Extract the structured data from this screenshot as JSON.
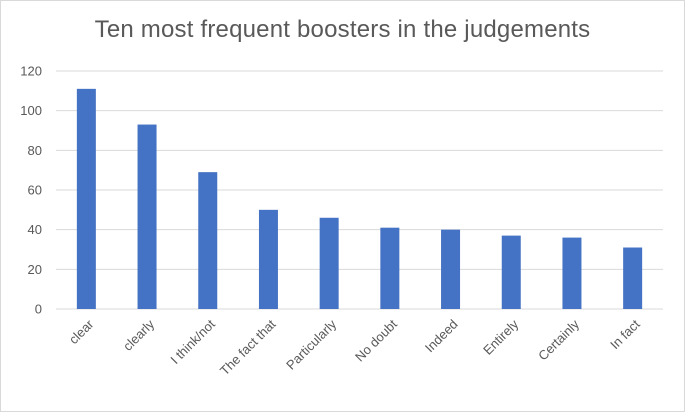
{
  "chart_data": {
    "type": "bar",
    "title": "Ten most frequent boosters in the judgements",
    "xlabel": "",
    "ylabel": "",
    "categories": [
      "clear",
      "clearly",
      "I think/not",
      "The fact that",
      "Particularly",
      "No doubt",
      "Indeed",
      "Entirely",
      "Certainly",
      "In fact"
    ],
    "values": [
      111,
      93,
      69,
      50,
      46,
      41,
      40,
      37,
      36,
      31
    ],
    "ylim": [
      0,
      120
    ],
    "yticks": [
      "0",
      "20",
      "40",
      "60",
      "80",
      "100",
      "120"
    ],
    "grid": true,
    "legend": "none",
    "bar_color": "#4472c4",
    "grid_color": "#d9d9d9"
  }
}
